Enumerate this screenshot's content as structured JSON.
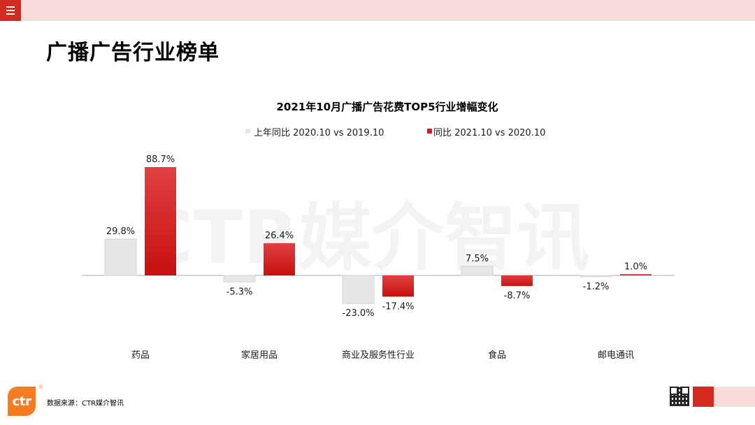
{
  "page": {
    "title": "广播广告行业榜单",
    "watermark": "CTR媒介智讯",
    "source": "数据来源：CTR媒介智讯",
    "logo_text": "ctr",
    "logo_reg": "®"
  },
  "colors": {
    "series_prev": "#e6e6e6",
    "series_curr": "#d61c1c",
    "accent": "#d42a20",
    "topbar": "#f8dcdc",
    "logo": "#f57c22"
  },
  "icons": {
    "menu": "menu-icon",
    "qr": "qr-code-icon"
  },
  "chart_data": {
    "type": "bar",
    "title": "2021年10月广播广告花费TOP5行业增幅变化",
    "categories": [
      "药品",
      "家居用品",
      "商业及服务性行业",
      "食品",
      "邮电通讯"
    ],
    "series": [
      {
        "name": "上年同比 2020.10 vs 2019.10",
        "values": [
          29.8,
          -5.3,
          -23.0,
          7.5,
          -1.2
        ]
      },
      {
        "name": "同比 2021.10 vs 2020.10",
        "values": [
          88.7,
          26.4,
          -17.4,
          -8.7,
          1.0
        ]
      }
    ],
    "data_labels": [
      [
        "29.8%",
        "-5.3%",
        "-23.0%",
        "7.5%",
        "-1.2%"
      ],
      [
        "88.7%",
        "26.4%",
        "-17.4%",
        "-8.7%",
        "1.0%"
      ]
    ],
    "value_unit": "%",
    "legend_position": "top-center",
    "grid": false,
    "ylim": [
      -30,
      90
    ],
    "xlabel": "",
    "ylabel": ""
  }
}
